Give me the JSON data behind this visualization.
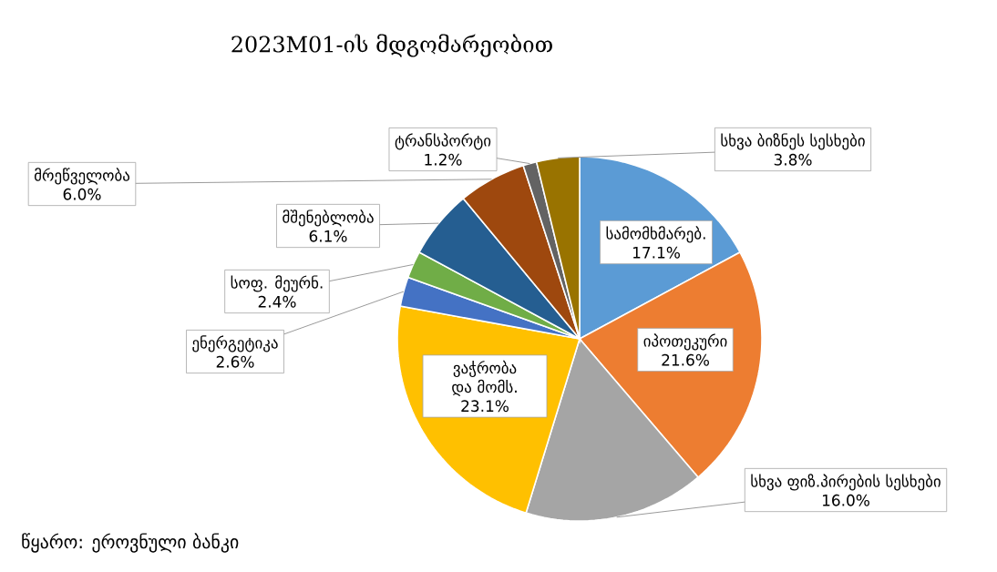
{
  "chart_data": {
    "type": "pie",
    "title": "2023M01-ის მდგომარეობით",
    "categories": [
      "სამომხმარებ.",
      "იპოთეკური",
      "სხვა ფიზ.პირების სესხები",
      "ვაჭრობა და მომს.",
      "ენერგეტიკა",
      "სოფ. მეურნ.",
      "მშენებლობა",
      "მრეწველობა",
      "ტრანსპორტი",
      "სხვა ბიზნეს სესხები"
    ],
    "values": [
      17.1,
      21.6,
      16.0,
      23.1,
      2.6,
      2.4,
      6.1,
      6.0,
      1.2,
      3.8
    ],
    "value_labels": [
      "17.1%",
      "21.6%",
      "16.0%",
      "23.1%",
      "2.6%",
      "2.4%",
      "6.1%",
      "6.0%",
      "1.2%",
      "3.8%"
    ],
    "colors": [
      "#5b9bd5",
      "#ed7d31",
      "#a5a5a5",
      "#ffc000",
      "#4472c4",
      "#70ad47",
      "#255e91",
      "#9e480e",
      "#636363",
      "#997300"
    ],
    "annotations": [
      "წყარო: ეროვნული ბანკი"
    ]
  }
}
